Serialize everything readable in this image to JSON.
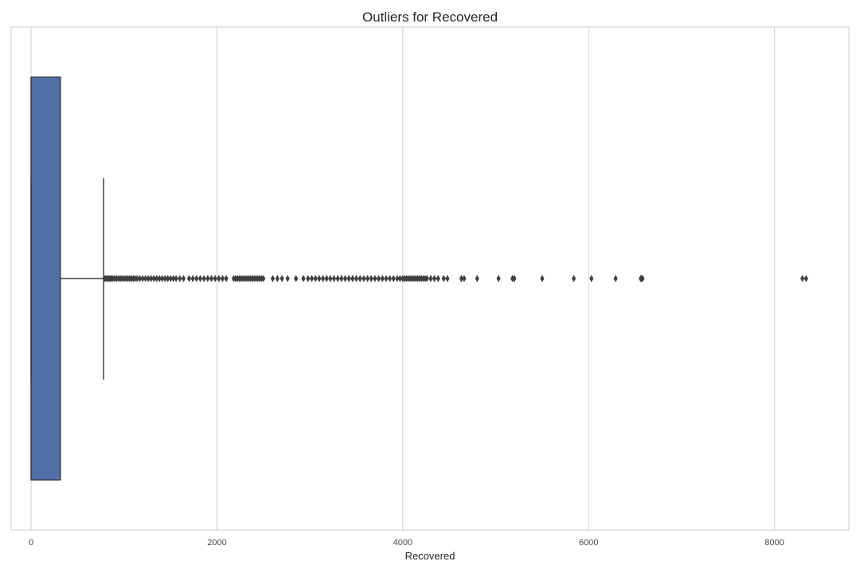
{
  "chart_data": {
    "type": "box",
    "title": "Outliers for Recovered",
    "xlabel": "Recovered",
    "ylabel": "",
    "orientation": "horizontal",
    "xlim": [
      -215,
      8800
    ],
    "xticks": [
      0,
      2000,
      4000,
      6000,
      8000
    ],
    "grid": "vertical",
    "box": {
      "whisker_low": 0,
      "q1": 0,
      "median": 0,
      "q3": 315,
      "whisker_high": 780
    },
    "colors": {
      "box_fill": "#5170a8",
      "box_edge": "#3f3f3f",
      "grid": "#d0d0d0",
      "spine": "#cccccc"
    },
    "outliers": [
      790,
      805,
      820,
      835,
      850,
      865,
      880,
      900,
      920,
      940,
      960,
      980,
      1000,
      1020,
      1040,
      1060,
      1080,
      1100,
      1120,
      1140,
      1170,
      1200,
      1230,
      1260,
      1290,
      1320,
      1350,
      1380,
      1410,
      1440,
      1470,
      1500,
      1530,
      1560,
      1600,
      1640,
      1700,
      1740,
      1780,
      1820,
      1860,
      1900,
      1940,
      1980,
      2020,
      2060,
      2100,
      2180,
      2200,
      2220,
      2240,
      2260,
      2280,
      2300,
      2320,
      2340,
      2360,
      2380,
      2400,
      2420,
      2440,
      2460,
      2480,
      2500,
      2600,
      2650,
      2700,
      2760,
      2850,
      2930,
      2980,
      3020,
      3060,
      3100,
      3140,
      3180,
      3220,
      3260,
      3300,
      3340,
      3380,
      3420,
      3460,
      3500,
      3540,
      3580,
      3620,
      3660,
      3700,
      3740,
      3780,
      3820,
      3860,
      3900,
      3940,
      3970,
      4000,
      4020,
      4040,
      4060,
      4080,
      4100,
      4120,
      4140,
      4160,
      4180,
      4200,
      4220,
      4240,
      4260,
      4300,
      4340,
      4380,
      4440,
      4480,
      4630,
      4660,
      4800,
      5030,
      5180,
      5200,
      5500,
      5840,
      6030,
      6290,
      6560,
      6570,
      6580,
      8300,
      8340
    ]
  }
}
